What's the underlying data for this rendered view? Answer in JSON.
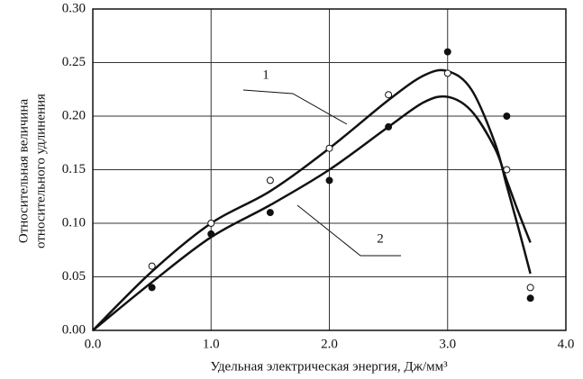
{
  "chart_data": {
    "type": "line",
    "xlabel": "Удельная электрическая энергия, Дж/мм³",
    "ylabel": [
      "Относительная величина",
      "относительного удлинения"
    ],
    "xlim": [
      0,
      4
    ],
    "ylim": [
      0,
      0.3
    ],
    "xticks": [
      {
        "value": 0,
        "label": "0.0"
      },
      {
        "value": 1,
        "label": "1.0"
      },
      {
        "value": 2,
        "label": "2.0"
      },
      {
        "value": 3,
        "label": "3.0"
      },
      {
        "value": 4,
        "label": "4.0"
      }
    ],
    "yticks": [
      {
        "value": 0,
        "label": "0.00"
      },
      {
        "value": 0.05,
        "label": "0.05"
      },
      {
        "value": 0.1,
        "label": "0.10"
      },
      {
        "value": 0.15,
        "label": "0.15"
      },
      {
        "value": 0.2,
        "label": "0.20"
      },
      {
        "value": 0.25,
        "label": "0.25"
      },
      {
        "value": 0.3,
        "label": "0.30"
      }
    ],
    "grid": true,
    "series": [
      {
        "name": "1",
        "color": "#111111",
        "x": [
          0,
          0.5,
          1.0,
          1.5,
          2.0,
          2.5,
          2.8,
          3.0,
          3.2,
          3.4,
          3.5,
          3.6,
          3.7
        ],
        "values": [
          0,
          0.055,
          0.1,
          0.13,
          0.17,
          0.215,
          0.238,
          0.242,
          0.225,
          0.175,
          0.135,
          0.095,
          0.053
        ]
      },
      {
        "name": "2",
        "color": "#111111",
        "x": [
          0,
          0.5,
          1.0,
          1.5,
          2.0,
          2.5,
          2.8,
          3.0,
          3.2,
          3.4,
          3.5,
          3.6,
          3.7
        ],
        "values": [
          0,
          0.045,
          0.087,
          0.117,
          0.15,
          0.19,
          0.213,
          0.218,
          0.205,
          0.17,
          0.14,
          0.11,
          0.082
        ]
      },
      {
        "marker": "open",
        "color": "#111111",
        "x": [
          0.5,
          1.0,
          1.5,
          2.0,
          2.5,
          3.0,
          3.5,
          3.7
        ],
        "values": [
          0.06,
          0.1,
          0.14,
          0.17,
          0.22,
          0.24,
          0.15,
          0.04
        ]
      },
      {
        "marker": "filled",
        "color": "#111111",
        "x": [
          0.5,
          1.0,
          1.5,
          2.0,
          2.5,
          3.0,
          3.5,
          3.7
        ],
        "values": [
          0.04,
          0.09,
          0.11,
          0.14,
          0.19,
          0.26,
          0.2,
          0.03
        ]
      }
    ]
  }
}
